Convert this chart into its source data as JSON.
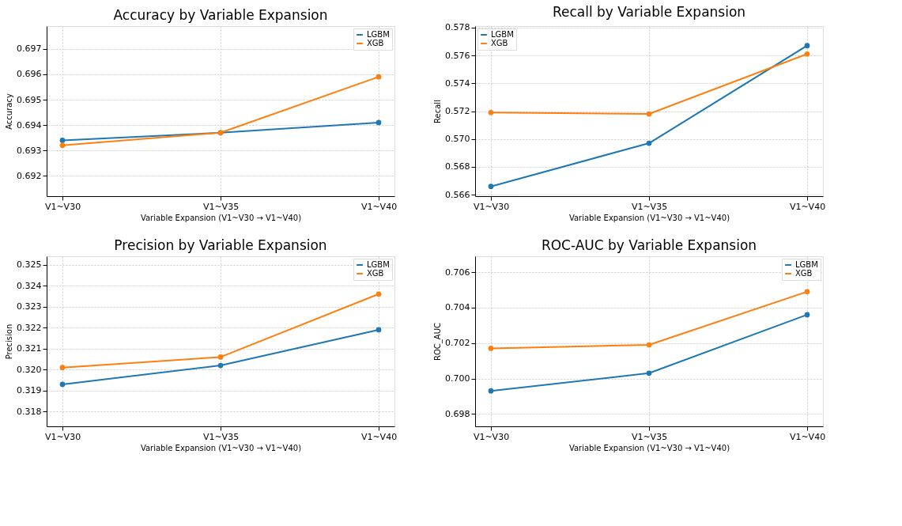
{
  "chart_data": [
    {
      "type": "line",
      "title": "Accuracy by Variable Expansion",
      "xlabel": "Variable Expansion (V1~V30 → V1~V40)",
      "ylabel": "Accuracy",
      "categories": [
        "V1~V30",
        "V1~V35",
        "V1~V40"
      ],
      "ylim": [
        0.6912,
        0.6979
      ],
      "yticks": [
        0.692,
        0.693,
        0.694,
        0.695,
        0.696,
        0.697
      ],
      "grid": true,
      "legend": "top right",
      "marker": "circle",
      "line_style": "solid",
      "series": [
        {
          "name": "LGBM",
          "color": "#1f77b4",
          "values": [
            0.6934,
            0.6937,
            0.6941
          ]
        },
        {
          "name": "XGB",
          "color": "#ff7f0e",
          "values": [
            0.6932,
            0.6937,
            0.6959
          ]
        }
      ]
    },
    {
      "type": "line",
      "title": "Recall by Variable Expansion",
      "xlabel": "Variable Expansion (V1~V30 → V1~V40)",
      "ylabel": "Recall",
      "categories": [
        "V1~V30",
        "V1~V35",
        "V1~V40"
      ],
      "ylim": [
        0.5659,
        0.5781
      ],
      "yticks": [
        0.566,
        0.568,
        {
          "value": 0.57,
          "label": "0.570"
        },
        0.572,
        0.574,
        0.576,
        0.578
      ],
      "grid": true,
      "legend": "top left",
      "marker": "circle",
      "line_style": "solid",
      "series": [
        {
          "name": "LGBM",
          "color": "#1f77b4",
          "values": [
            0.5666,
            0.5697,
            0.5767
          ]
        },
        {
          "name": "XGB",
          "color": "#ff7f0e",
          "values": [
            0.5719,
            0.5718,
            0.5761
          ]
        }
      ]
    },
    {
      "type": "line",
      "title": "Precision by Variable Expansion",
      "xlabel": "Variable Expansion (V1~V30 → V1~V40)",
      "ylabel": "Precision",
      "categories": [
        "V1~V30",
        "V1~V35",
        "V1~V40"
      ],
      "ylim": [
        0.3173,
        0.3254
      ],
      "yticks": [
        0.318,
        0.319,
        {
          "value": 0.32,
          "label": "0.320"
        },
        0.321,
        0.322,
        0.323,
        0.324,
        0.325
      ],
      "grid": true,
      "legend": "top right",
      "marker": "circle",
      "line_style": "solid",
      "series": [
        {
          "name": "LGBM",
          "color": "#1f77b4",
          "values": [
            0.3193,
            0.3202,
            0.3219
          ]
        },
        {
          "name": "XGB",
          "color": "#ff7f0e",
          "values": [
            0.3201,
            0.3206,
            0.3236
          ]
        }
      ]
    },
    {
      "type": "line",
      "title": "ROC-AUC by Variable Expansion",
      "xlabel": "Variable Expansion (V1~V30 → V1~V40)",
      "ylabel": "ROC_AUC",
      "categories": [
        "V1~V30",
        "V1~V35",
        "V1~V40"
      ],
      "ylim": [
        0.6973,
        0.7069
      ],
      "yticks": [
        0.698,
        {
          "value": 0.7,
          "label": "0.700"
        },
        0.702,
        0.704,
        0.706
      ],
      "grid": true,
      "legend": "top right",
      "marker": "circle",
      "line_style": "solid",
      "series": [
        {
          "name": "LGBM",
          "color": "#1f77b4",
          "values": [
            0.6993,
            0.7003,
            0.7036
          ]
        },
        {
          "name": "XGB",
          "color": "#ff7f0e",
          "values": [
            0.7017,
            0.7019,
            0.7049
          ]
        }
      ]
    }
  ]
}
